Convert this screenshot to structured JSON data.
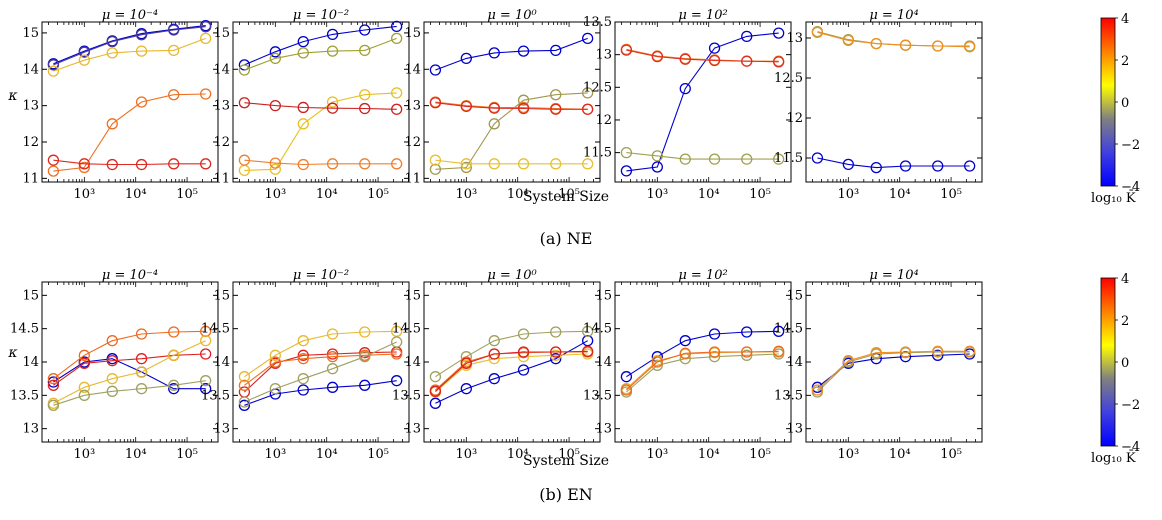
{
  "figure": {
    "xlabel": "System Size",
    "ylabel": "κ",
    "colorbar": {
      "label": "log₁₀ K̄",
      "range": [
        -4,
        4
      ],
      "ticks": [
        4,
        2,
        0,
        -2,
        -4
      ],
      "tick_labels": [
        "4",
        "2",
        "0",
        "−2",
        "−4"
      ],
      "colors": [
        "#0000ff",
        "#4040e0",
        "#808080",
        "#ffff00",
        "#ff8000",
        "#ff0000"
      ]
    },
    "rows": [
      {
        "caption": "(a) NE",
        "ylim": [
          10.9,
          15.3
        ],
        "panels": [
          {
            "title": "μ = 10⁻⁴",
            "yticks": [
              11,
              12,
              13,
              14,
              15
            ],
            "ylim": [
              10.9,
              15.3
            ]
          },
          {
            "title": "μ = 10⁻²",
            "yticks": [
              11,
              12,
              13,
              14,
              15
            ],
            "ylim": [
              10.9,
              15.3
            ]
          },
          {
            "title": "μ = 10⁰",
            "yticks": [
              11,
              12,
              13,
              14,
              15
            ],
            "ylim": [
              10.9,
              15.3
            ]
          },
          {
            "title": "μ = 10²",
            "yticks": [
              11.5,
              12,
              12.5,
              13,
              13.5
            ],
            "ylim": [
              11.05,
              13.5
            ]
          },
          {
            "title": "μ = 10⁴",
            "yticks": [
              11.5,
              12,
              12.5,
              13
            ],
            "ylim": [
              11.2,
              13.2
            ]
          }
        ]
      },
      {
        "caption": "(b) EN",
        "ylim": [
          12.8,
          15.2
        ],
        "panels": [
          {
            "title": "μ = 10⁻⁴",
            "yticks": [
              13,
              13.5,
              14,
              14.5,
              15
            ],
            "ylim": [
              12.8,
              15.2
            ]
          },
          {
            "title": "μ = 10⁻²",
            "yticks": [
              13,
              13.5,
              14,
              14.5,
              15
            ],
            "ylim": [
              12.8,
              15.2
            ]
          },
          {
            "title": "μ = 10⁰",
            "yticks": [
              13,
              13.5,
              14,
              14.5,
              15
            ],
            "ylim": [
              12.8,
              15.2
            ]
          },
          {
            "title": "μ = 10²",
            "yticks": [
              13,
              13.5,
              14,
              14.5,
              15
            ],
            "ylim": [
              12.8,
              15.2
            ]
          },
          {
            "title": "μ = 10⁴",
            "yticks": [
              13,
              13.5,
              14,
              14.5,
              15
            ],
            "ylim": [
              12.8,
              15.2
            ]
          }
        ]
      }
    ],
    "xticks": [
      1000,
      10000,
      100000
    ],
    "xtick_labels": [
      "10³",
      "10⁴",
      "10⁵"
    ],
    "xlim": [
      150,
      400000
    ]
  },
  "chart_data": [
    {
      "type": "line",
      "row": 0,
      "panel": 0,
      "title": "μ = 10⁻⁴",
      "xscale": "log",
      "x": [
        250,
        1000,
        3500,
        13000,
        55000,
        230000
      ],
      "series": [
        {
          "color": "#0000cc",
          "values": [
            14.15,
            14.5,
            14.78,
            14.98,
            15.1,
            15.2
          ]
        },
        {
          "color": "#4a3a9a",
          "values": [
            14.12,
            14.47,
            14.76,
            14.95,
            15.08,
            15.17
          ]
        },
        {
          "color": "#e8b830",
          "values": [
            13.95,
            14.25,
            14.45,
            14.5,
            14.52,
            14.85
          ]
        },
        {
          "color": "#ee7020",
          "values": [
            11.2,
            11.3,
            12.5,
            13.1,
            13.3,
            13.32
          ]
        },
        {
          "color": "#dd2a20",
          "values": [
            11.5,
            11.4,
            11.38,
            11.38,
            11.4,
            11.4
          ]
        }
      ]
    },
    {
      "type": "line",
      "row": 0,
      "panel": 1,
      "title": "μ = 10⁻²",
      "xscale": "log",
      "x": [
        250,
        1000,
        3500,
        13000,
        55000,
        230000
      ],
      "series": [
        {
          "color": "#0000cc",
          "values": [
            14.12,
            14.48,
            14.76,
            14.96,
            15.08,
            15.18
          ]
        },
        {
          "color": "#a0a030",
          "values": [
            13.98,
            14.3,
            14.45,
            14.5,
            14.52,
            14.85
          ]
        },
        {
          "color": "#e8c020",
          "values": [
            11.22,
            11.25,
            12.5,
            13.1,
            13.3,
            13.35
          ]
        },
        {
          "color": "#ee8030",
          "values": [
            11.5,
            11.42,
            11.38,
            11.4,
            11.4,
            11.4
          ]
        },
        {
          "color": "#cc2020",
          "values": [
            13.08,
            13.0,
            12.95,
            12.93,
            12.92,
            12.9
          ]
        }
      ]
    },
    {
      "type": "line",
      "row": 0,
      "panel": 2,
      "title": "μ = 10⁰",
      "xscale": "log",
      "x": [
        250,
        1000,
        3500,
        13000,
        55000,
        230000
      ],
      "series": [
        {
          "color": "#0000cc",
          "values": [
            13.98,
            14.3,
            14.45,
            14.5,
            14.52,
            14.85
          ]
        },
        {
          "color": "#a09850",
          "values": [
            11.25,
            11.3,
            12.5,
            13.15,
            13.3,
            13.35
          ]
        },
        {
          "color": "#e8c030",
          "values": [
            11.5,
            11.4,
            11.4,
            11.4,
            11.4,
            11.4
          ]
        },
        {
          "color": "#ee8020",
          "values": [
            13.1,
            13.0,
            12.95,
            12.95,
            12.92,
            12.9
          ]
        },
        {
          "color": "#dd2a20",
          "values": [
            13.08,
            12.98,
            12.93,
            12.92,
            12.9,
            12.9
          ]
        }
      ]
    },
    {
      "type": "line",
      "row": 0,
      "panel": 3,
      "title": "μ = 10²",
      "xscale": "log",
      "x": [
        250,
        1000,
        3500,
        13000,
        55000,
        230000
      ],
      "series": [
        {
          "color": "#0000cc",
          "values": [
            11.22,
            11.28,
            12.48,
            13.1,
            13.28,
            13.33
          ]
        },
        {
          "color": "#a0a050",
          "values": [
            11.5,
            11.45,
            11.4,
            11.4,
            11.4,
            11.4
          ]
        },
        {
          "color": "#ee8020",
          "values": [
            13.08,
            12.98,
            12.94,
            12.92,
            12.9,
            12.9
          ]
        },
        {
          "color": "#dd3020",
          "values": [
            13.07,
            12.97,
            12.93,
            12.91,
            12.9,
            12.89
          ]
        }
      ]
    },
    {
      "type": "line",
      "row": 0,
      "panel": 4,
      "title": "μ = 10⁴",
      "xscale": "log",
      "x": [
        250,
        1000,
        3500,
        13000,
        55000,
        230000
      ],
      "series": [
        {
          "color": "#0000cc",
          "values": [
            11.5,
            11.42,
            11.38,
            11.4,
            11.4,
            11.4
          ]
        },
        {
          "color": "#a0a050",
          "values": [
            13.08,
            12.98,
            12.93,
            12.91,
            12.9,
            12.9
          ]
        },
        {
          "color": "#ee9020",
          "values": [
            13.07,
            12.97,
            12.93,
            12.91,
            12.9,
            12.89
          ]
        }
      ]
    },
    {
      "type": "line",
      "row": 1,
      "panel": 0,
      "title": "μ = 10⁻⁴",
      "xscale": "log",
      "x": [
        250,
        1000,
        3500,
        13000,
        55000,
        230000
      ],
      "series": [
        {
          "color": "#0000cc",
          "values": [
            13.7,
            14.0,
            14.05,
            13.85,
            13.6,
            13.6
          ]
        },
        {
          "color": "#dd2020",
          "values": [
            13.65,
            13.98,
            14.02,
            14.05,
            14.1,
            14.12
          ]
        },
        {
          "color": "#ee6a20",
          "values": [
            13.75,
            14.1,
            14.32,
            14.42,
            14.45,
            14.46
          ]
        },
        {
          "color": "#e8b830",
          "values": [
            13.38,
            13.62,
            13.75,
            13.85,
            14.1,
            14.32
          ]
        },
        {
          "color": "#a0a060",
          "values": [
            13.35,
            13.5,
            13.56,
            13.6,
            13.65,
            13.72
          ]
        }
      ]
    },
    {
      "type": "line",
      "row": 1,
      "panel": 1,
      "title": "μ = 10⁻²",
      "xscale": "log",
      "x": [
        250,
        1000,
        3500,
        13000,
        55000,
        230000
      ],
      "series": [
        {
          "color": "#0000cc",
          "values": [
            13.35,
            13.52,
            13.58,
            13.62,
            13.65,
            13.72
          ]
        },
        {
          "color": "#dd2020",
          "values": [
            13.55,
            13.98,
            14.1,
            14.12,
            14.14,
            14.15
          ]
        },
        {
          "color": "#ee7020",
          "values": [
            13.65,
            14.0,
            14.05,
            14.08,
            14.1,
            14.12
          ]
        },
        {
          "color": "#e8b830",
          "values": [
            13.78,
            14.1,
            14.32,
            14.42,
            14.45,
            14.46
          ]
        },
        {
          "color": "#a0a060",
          "values": [
            13.4,
            13.6,
            13.75,
            13.9,
            14.08,
            14.3
          ]
        }
      ]
    },
    {
      "type": "line",
      "row": 1,
      "panel": 2,
      "title": "μ = 10⁰",
      "xscale": "log",
      "x": [
        250,
        1000,
        3500,
        13000,
        55000,
        230000
      ],
      "series": [
        {
          "color": "#0000cc",
          "values": [
            13.38,
            13.6,
            13.75,
            13.88,
            14.05,
            14.32
          ]
        },
        {
          "color": "#a0a060",
          "values": [
            13.78,
            14.08,
            14.32,
            14.42,
            14.45,
            14.46
          ]
        },
        {
          "color": "#e8c030",
          "values": [
            13.55,
            13.95,
            14.05,
            14.08,
            14.1,
            14.12
          ]
        },
        {
          "color": "#ee7020",
          "values": [
            13.58,
            14.0,
            14.12,
            14.14,
            14.15,
            14.15
          ]
        },
        {
          "color": "#dd2020",
          "values": [
            13.56,
            13.98,
            14.12,
            14.15,
            14.15,
            14.16
          ]
        }
      ]
    },
    {
      "type": "line",
      "row": 1,
      "panel": 3,
      "title": "μ = 10²",
      "xscale": "log",
      "x": [
        250,
        1000,
        3500,
        13000,
        55000,
        230000
      ],
      "series": [
        {
          "color": "#0000cc",
          "values": [
            13.78,
            14.08,
            14.32,
            14.42,
            14.45,
            14.46
          ]
        },
        {
          "color": "#a0a060",
          "values": [
            13.55,
            13.95,
            14.05,
            14.08,
            14.1,
            14.12
          ]
        },
        {
          "color": "#e8b030",
          "values": [
            13.6,
            14.02,
            14.12,
            14.14,
            14.15,
            14.15
          ]
        },
        {
          "color": "#ee6a20",
          "values": [
            13.58,
            14.0,
            14.13,
            14.15,
            14.15,
            14.16
          ]
        }
      ]
    },
    {
      "type": "line",
      "row": 1,
      "panel": 4,
      "title": "μ = 10⁴",
      "xscale": "log",
      "x": [
        250,
        1000,
        3500,
        13000,
        55000,
        230000
      ],
      "series": [
        {
          "color": "#0000cc",
          "values": [
            13.62,
            13.98,
            14.05,
            14.08,
            14.1,
            14.12
          ]
        },
        {
          "color": "#a0a060",
          "values": [
            13.55,
            14.0,
            14.12,
            14.14,
            14.15,
            14.15
          ]
        },
        {
          "color": "#ee9020",
          "values": [
            13.58,
            14.02,
            14.14,
            14.15,
            14.16,
            14.16
          ]
        }
      ]
    }
  ]
}
